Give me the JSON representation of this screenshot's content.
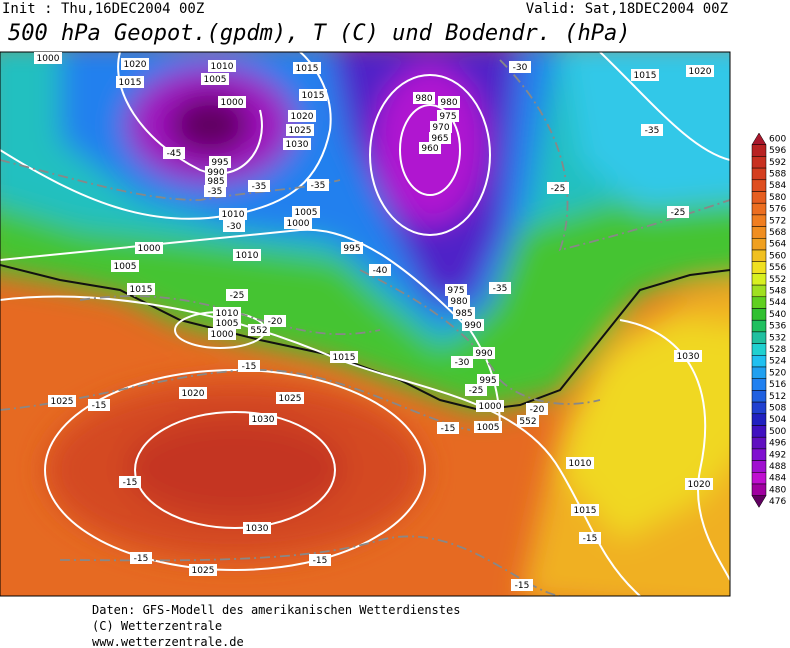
{
  "header": {
    "init": "Init : Thu,16DEC2004 00Z",
    "valid": "Valid: Sat,18DEC2004 00Z",
    "title": "500 hPa Geopot.(gpdm), T (C) und Bodendr. (hPa)"
  },
  "map": {
    "isobar_labels": [
      1000,
      1020,
      1015,
      1010,
      1005,
      1015,
      1000,
      1015,
      1020,
      1025,
      1030,
      995,
      990,
      985,
      1010,
      1005,
      1000,
      1000,
      1005,
      1010,
      995,
      1015,
      1010,
      1005,
      1000,
      1015,
      1020,
      1025,
      1025,
      1030,
      1030,
      1025,
      980,
      980,
      975,
      970,
      965,
      960,
      975,
      980,
      985,
      990,
      990,
      995,
      1000,
      1005,
      1010,
      1015,
      1020,
      1030,
      1015,
      1020
    ],
    "temperature_labels": [
      -45,
      -35,
      -35,
      -35,
      -30,
      -25,
      -20,
      -15,
      -15,
      -40,
      -35,
      -30,
      -25,
      -15,
      -20,
      -25,
      -25,
      -35,
      -30,
      -15,
      -15,
      -15,
      -15,
      -15
    ],
    "geopotential_labels": [
      552,
      552
    ]
  },
  "color_scale": {
    "values": [
      600,
      596,
      592,
      588,
      584,
      580,
      576,
      572,
      568,
      564,
      560,
      556,
      552,
      548,
      544,
      540,
      536,
      532,
      528,
      524,
      520,
      516,
      512,
      508,
      504,
      500,
      496,
      492,
      488,
      484,
      480,
      476
    ],
    "colors": [
      "#a8182c",
      "#b82222",
      "#c83020",
      "#d43e20",
      "#de4e20",
      "#e65e20",
      "#ec6e20",
      "#f07e20",
      "#f08e20",
      "#f0a020",
      "#f0c020",
      "#f0e020",
      "#d8f020",
      "#a0e020",
      "#60d020",
      "#30c030",
      "#20c060",
      "#20c0a0",
      "#20d0d0",
      "#20c0f0",
      "#20a0f0",
      "#2080f0",
      "#2060e0",
      "#2040d0",
      "#2020c0",
      "#4010c0",
      "#6010c0",
      "#8010d0",
      "#a010d0",
      "#c010d0",
      "#a000a0",
      "#600060"
    ]
  },
  "footer": {
    "lines": [
      "Daten: GFS-Modell des amerikanischen Wetterdienstes",
      "(C) Wetterzentrale",
      "www.wetterzentrale.de"
    ]
  }
}
